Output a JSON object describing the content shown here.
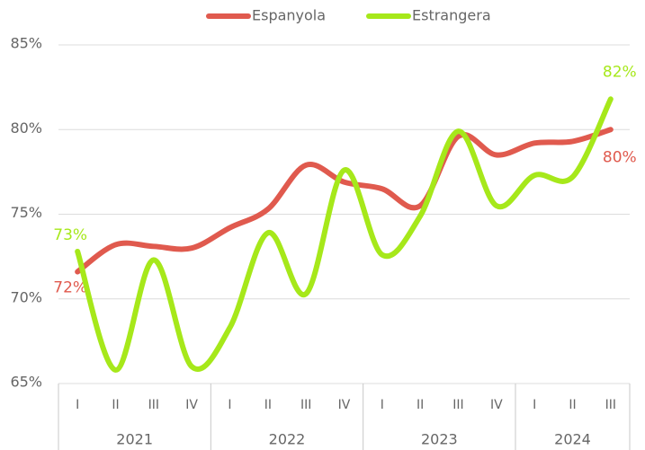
{
  "chart_data": {
    "type": "line",
    "groups": [
      {
        "name": "2021",
        "categories": [
          "I",
          "II",
          "III",
          "IV"
        ]
      },
      {
        "name": "2022",
        "categories": [
          "I",
          "II",
          "III",
          "IV"
        ]
      },
      {
        "name": "2023",
        "categories": [
          "I",
          "II",
          "III",
          "IV"
        ]
      },
      {
        "name": "2024",
        "categories": [
          "I",
          "II",
          "III"
        ]
      }
    ],
    "series": [
      {
        "name": "Espanyola",
        "color": "#e05a4e",
        "values": [
          71.6,
          73.2,
          73.1,
          73.0,
          74.2,
          75.3,
          77.9,
          76.9,
          76.5,
          75.5,
          79.6,
          78.5,
          79.2,
          79.3,
          80.0
        ],
        "value_labels": [
          "72%",
          null,
          null,
          null,
          null,
          null,
          null,
          null,
          null,
          null,
          null,
          null,
          null,
          null,
          "80%"
        ]
      },
      {
        "name": "Estrangera",
        "color": "#a6e81a",
        "values": [
          72.8,
          65.8,
          72.3,
          66.0,
          68.3,
          73.9,
          70.3,
          77.6,
          72.6,
          74.9,
          79.9,
          75.5,
          77.3,
          77.2,
          81.8
        ],
        "value_labels": [
          "73%",
          null,
          null,
          null,
          null,
          null,
          null,
          null,
          null,
          null,
          null,
          null,
          null,
          null,
          "82%"
        ]
      }
    ],
    "ylim": [
      65,
      85
    ],
    "yticks": [
      {
        "value": 65,
        "label": "65%"
      },
      {
        "value": 70,
        "label": "70%"
      },
      {
        "value": 75,
        "label": "75%"
      },
      {
        "value": 80,
        "label": "80%"
      },
      {
        "value": 85,
        "label": "85%"
      }
    ],
    "grid": true,
    "legend": "top"
  }
}
